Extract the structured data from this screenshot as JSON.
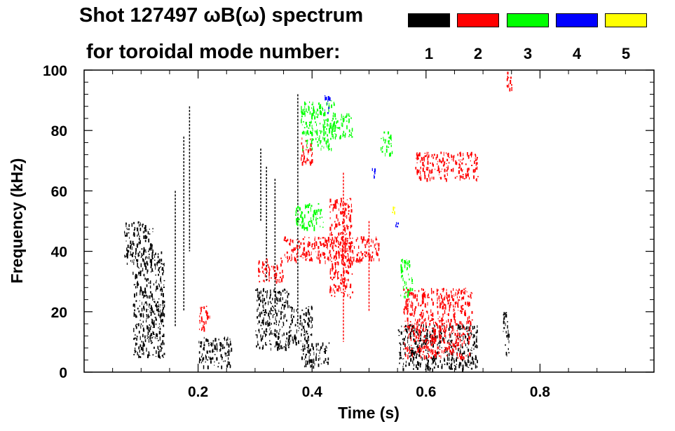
{
  "header": {
    "title_line1": "Shot 127497 ωB(ω) spectrum",
    "title_line2": "for toroidal mode number:"
  },
  "legend": [
    {
      "label": "1",
      "color": "#000000"
    },
    {
      "label": "2",
      "color": "#ff0000"
    },
    {
      "label": "3",
      "color": "#00ff00"
    },
    {
      "label": "4",
      "color": "#0000ff"
    },
    {
      "label": "5",
      "color": "#ffff00"
    }
  ],
  "chart_data": {
    "type": "heatmap",
    "title": "Shot 127497 ωB(ω) spectrum",
    "subtitle": "for toroidal mode number:",
    "xlabel": "Time (s)",
    "ylabel": "Frequency (kHz)",
    "xlim": [
      0.0,
      1.0
    ],
    "ylim": [
      0,
      100
    ],
    "xticks": [
      0.2,
      0.4,
      0.6,
      0.8
    ],
    "xtick_labels": [
      "0.2",
      "0.4",
      "0.6",
      "0.8"
    ],
    "xminor_step": 0.05,
    "yticks": [
      0,
      20,
      40,
      60,
      80,
      100
    ],
    "ytick_labels": [
      "0",
      "20",
      "40",
      "60",
      "80",
      "100"
    ],
    "yminor_step": 4,
    "series": [
      {
        "name": "n=1",
        "color": "#000000",
        "blobs": [
          {
            "t": [
              0.07,
              0.12
            ],
            "f": [
              36,
              50
            ]
          },
          {
            "t": [
              0.085,
              0.14
            ],
            "f": [
              5,
              40
            ]
          },
          {
            "t": [
              0.2,
              0.26
            ],
            "f": [
              2,
              12
            ]
          },
          {
            "t": [
              0.3,
              0.36
            ],
            "f": [
              8,
              28
            ]
          },
          {
            "t": [
              0.36,
              0.4
            ],
            "f": [
              10,
              22
            ]
          },
          {
            "t": [
              0.38,
              0.43
            ],
            "f": [
              2,
              10
            ]
          },
          {
            "t": [
              0.55,
              0.69
            ],
            "f": [
              1,
              16
            ]
          },
          {
            "t": [
              0.735,
              0.745
            ],
            "f": [
              6,
              20
            ]
          }
        ],
        "lines": [
          {
            "t": 0.185,
            "f": [
              40,
              88
            ]
          },
          {
            "t": 0.175,
            "f": [
              20,
              78
            ]
          },
          {
            "t": 0.16,
            "f": [
              15,
              60
            ]
          },
          {
            "t": 0.31,
            "f": [
              50,
              74
            ]
          },
          {
            "t": 0.32,
            "f": [
              30,
              68
            ]
          },
          {
            "t": 0.375,
            "f": [
              15,
              92
            ]
          },
          {
            "t": 0.335,
            "f": [
              20,
              64
            ]
          }
        ]
      },
      {
        "name": "n=2",
        "color": "#ff0000",
        "blobs": [
          {
            "t": [
              0.2,
              0.22
            ],
            "f": [
              14,
              22
            ]
          },
          {
            "t": [
              0.305,
              0.35
            ],
            "f": [
              30,
              38
            ]
          },
          {
            "t": [
              0.35,
              0.52
            ],
            "f": [
              37,
              45
            ]
          },
          {
            "t": [
              0.43,
              0.47
            ],
            "f": [
              25,
              58
            ]
          },
          {
            "t": [
              0.38,
              0.4
            ],
            "f": [
              69,
              78
            ]
          },
          {
            "t": [
              0.58,
              0.69
            ],
            "f": [
              64,
              73
            ]
          },
          {
            "t": [
              0.56,
              0.68
            ],
            "f": [
              5,
              28
            ]
          },
          {
            "t": [
              0.74,
              0.75
            ],
            "f": [
              94,
              100
            ]
          }
        ],
        "lines": [
          {
            "t": 0.455,
            "f": [
              10,
              66
            ]
          },
          {
            "t": 0.5,
            "f": [
              20,
              50
            ]
          }
        ]
      },
      {
        "name": "n=3",
        "color": "#00ff00",
        "blobs": [
          {
            "t": [
              0.38,
              0.44
            ],
            "f": [
              74,
              90
            ]
          },
          {
            "t": [
              0.43,
              0.47
            ],
            "f": [
              78,
              86
            ]
          },
          {
            "t": [
              0.555,
              0.575
            ],
            "f": [
              25,
              38
            ]
          },
          {
            "t": [
              0.37,
              0.42
            ],
            "f": [
              48,
              56
            ]
          },
          {
            "t": [
              0.52,
              0.54
            ],
            "f": [
              72,
              80
            ]
          }
        ]
      },
      {
        "name": "n=4",
        "color": "#0000ff",
        "blobs": [
          {
            "t": [
              0.42,
              0.43
            ],
            "f": [
              86,
              92
            ]
          },
          {
            "t": [
              0.505,
              0.51
            ],
            "f": [
              64,
              68
            ]
          },
          {
            "t": [
              0.545,
              0.55
            ],
            "f": [
              48,
              50
            ]
          }
        ]
      },
      {
        "name": "n=5",
        "color": "#ffff00",
        "blobs": [
          {
            "t": [
              0.54,
              0.545
            ],
            "f": [
              53,
              55
            ]
          }
        ]
      }
    ]
  }
}
